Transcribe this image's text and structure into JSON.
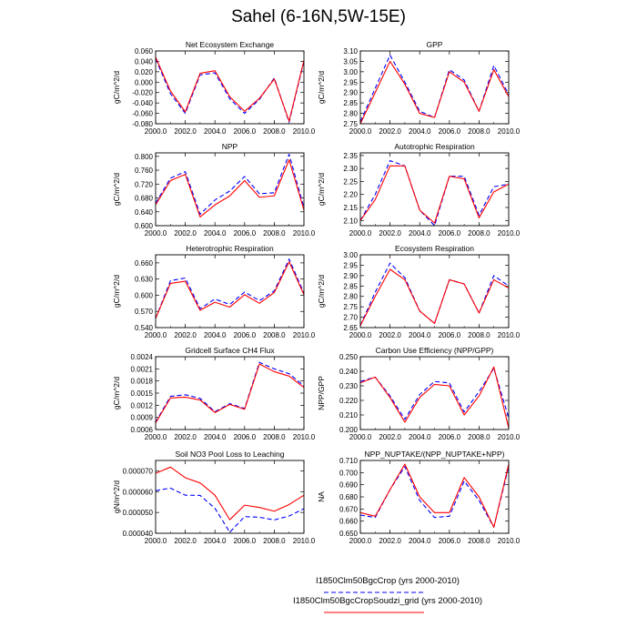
{
  "page": {
    "title": "Sahel (6-16N,5W-15E)"
  },
  "legend": {
    "items": [
      {
        "label": "I1850Clm50BgcCrop (yrs 2000-2010)",
        "color": "#0000ff",
        "dash": true
      },
      {
        "label": "I1850Clm50BgcCropSoudzi_grid (yrs 2000-2010)",
        "color": "#ff0000",
        "dash": false
      }
    ]
  },
  "chart_data": [
    {
      "type": "line",
      "title": "Net Ecosystem Exchange",
      "ylabel": "gC/m^2/d",
      "x": [
        2000,
        2001,
        2002,
        2003,
        2004,
        2005,
        2006,
        2007,
        2008,
        2009,
        2010
      ],
      "xticks": [
        2000,
        2002,
        2004,
        2006,
        2008,
        2010
      ],
      "xtick_labels": [
        "2000.0",
        "2002.0",
        "2004.0",
        "2006.0",
        "2008.0",
        "2010.0"
      ],
      "xlim": [
        2000,
        2010
      ],
      "ylim": [
        -0.08,
        0.06
      ],
      "yticks": [
        -0.08,
        -0.06,
        -0.04,
        -0.02,
        0.0,
        0.02,
        0.04,
        0.06
      ],
      "ytick_labels": [
        "-0.080",
        "-0.060",
        "-0.040",
        "-0.020",
        "0.000",
        "0.020",
        "0.040",
        "0.060"
      ],
      "series": [
        {
          "name": "I1850Clm50BgcCrop (yrs 2000-2010)",
          "color": "#0000ff",
          "dash": true,
          "values": [
            0.045,
            -0.022,
            -0.06,
            0.014,
            0.018,
            -0.032,
            -0.06,
            -0.033,
            0.008,
            -0.077,
            0.04
          ]
        },
        {
          "name": "I1850Clm50BgcCropSoudzi_grid (yrs 2000-2010)",
          "color": "#ff0000",
          "dash": false,
          "values": [
            0.048,
            -0.017,
            -0.057,
            0.017,
            0.022,
            -0.028,
            -0.056,
            -0.031,
            0.006,
            -0.075,
            0.042
          ]
        }
      ]
    },
    {
      "type": "line",
      "title": "GPP",
      "ylabel": "gC/m^2/d",
      "x": [
        2000,
        2001,
        2002,
        2003,
        2004,
        2005,
        2006,
        2007,
        2008,
        2009,
        2010
      ],
      "xticks": [
        2000,
        2002,
        2004,
        2006,
        2008,
        2010
      ],
      "xtick_labels": [
        "2000.0",
        "2002.0",
        "2004.0",
        "2006.0",
        "2008.0",
        "2010.0"
      ],
      "xlim": [
        2000,
        2010
      ],
      "ylim": [
        2.75,
        3.1
      ],
      "yticks": [
        2.75,
        2.8,
        2.85,
        2.9,
        2.95,
        3.0,
        3.05,
        3.1
      ],
      "ytick_labels": [
        "2.75",
        "2.80",
        "2.85",
        "2.90",
        "2.95",
        "3.00",
        "3.05",
        "3.10"
      ],
      "series": [
        {
          "name": "I1850Clm50BgcCrop (yrs 2000-2010)",
          "color": "#0000ff",
          "dash": true,
          "values": [
            2.76,
            2.92,
            3.08,
            2.95,
            2.81,
            2.78,
            3.01,
            2.96,
            2.81,
            3.03,
            2.89
          ]
        },
        {
          "name": "I1850Clm50BgcCropSoudzi_grid (yrs 2000-2010)",
          "color": "#ff0000",
          "dash": false,
          "values": [
            2.75,
            2.9,
            3.05,
            2.94,
            2.8,
            2.78,
            3.0,
            2.95,
            2.81,
            3.01,
            2.88
          ]
        }
      ]
    },
    {
      "type": "line",
      "title": "NPP",
      "ylabel": "gC/m^2/d",
      "x": [
        2000,
        2001,
        2002,
        2003,
        2004,
        2005,
        2006,
        2007,
        2008,
        2009,
        2010
      ],
      "xticks": [
        2000,
        2002,
        2004,
        2006,
        2008,
        2010
      ],
      "xtick_labels": [
        "2000.0",
        "2002.0",
        "2004.0",
        "2006.0",
        "2008.0",
        "2010.0"
      ],
      "xlim": [
        2000,
        2010
      ],
      "ylim": [
        0.6,
        0.81
      ],
      "yticks": [
        0.6,
        0.64,
        0.68,
        0.72,
        0.76,
        0.8
      ],
      "ytick_labels": [
        "0.600",
        "0.640",
        "0.680",
        "0.720",
        "0.760",
        "0.800"
      ],
      "series": [
        {
          "name": "I1850Clm50BgcCrop (yrs 2000-2010)",
          "color": "#0000ff",
          "dash": true,
          "values": [
            0.665,
            0.737,
            0.756,
            0.633,
            0.674,
            0.7,
            0.742,
            0.692,
            0.695,
            0.806,
            0.652
          ]
        },
        {
          "name": "I1850Clm50BgcCropSoudzi_grid (yrs 2000-2010)",
          "color": "#ff0000",
          "dash": false,
          "values": [
            0.66,
            0.73,
            0.748,
            0.625,
            0.66,
            0.686,
            0.73,
            0.682,
            0.686,
            0.79,
            0.645
          ]
        }
      ]
    },
    {
      "type": "line",
      "title": "Autotrophic Respiration",
      "ylabel": "gC/m^2/d",
      "x": [
        2000,
        2001,
        2002,
        2003,
        2004,
        2005,
        2006,
        2007,
        2008,
        2009,
        2010
      ],
      "xticks": [
        2000,
        2002,
        2004,
        2006,
        2008,
        2010
      ],
      "xtick_labels": [
        "2000.0",
        "2002.0",
        "2004.0",
        "2006.0",
        "2008.0",
        "2010.0"
      ],
      "xlim": [
        2000,
        2010
      ],
      "ylim": [
        2.08,
        2.36
      ],
      "yticks": [
        2.1,
        2.15,
        2.2,
        2.25,
        2.3,
        2.35
      ],
      "ytick_labels": [
        "2.10",
        "2.15",
        "2.20",
        "2.25",
        "2.30",
        "2.35"
      ],
      "series": [
        {
          "name": "I1850Clm50BgcCrop (yrs 2000-2010)",
          "color": "#0000ff",
          "dash": true,
          "values": [
            2.1,
            2.2,
            2.33,
            2.31,
            2.14,
            2.08,
            2.27,
            2.27,
            2.12,
            2.23,
            2.24
          ]
        },
        {
          "name": "I1850Clm50BgcCropSoudzi_grid (yrs 2000-2010)",
          "color": "#ff0000",
          "dash": false,
          "values": [
            2.1,
            2.18,
            2.31,
            2.31,
            2.14,
            2.09,
            2.27,
            2.26,
            2.11,
            2.21,
            2.24
          ]
        }
      ]
    },
    {
      "type": "line",
      "title": "Heterotrophic Respiration",
      "ylabel": "gC/m^2/d",
      "x": [
        2000,
        2001,
        2002,
        2003,
        2004,
        2005,
        2006,
        2007,
        2008,
        2009,
        2010
      ],
      "xticks": [
        2000,
        2002,
        2004,
        2006,
        2008,
        2010
      ],
      "xtick_labels": [
        "2000.0",
        "2002.0",
        "2004.0",
        "2006.0",
        "2008.0",
        "2010.0"
      ],
      "xlim": [
        2000,
        2010
      ],
      "ylim": [
        0.54,
        0.675
      ],
      "yticks": [
        0.54,
        0.57,
        0.6,
        0.63,
        0.66
      ],
      "ytick_labels": [
        "0.540",
        "0.570",
        "0.600",
        "0.630",
        "0.660"
      ],
      "series": [
        {
          "name": "I1850Clm50BgcCrop (yrs 2000-2010)",
          "color": "#0000ff",
          "dash": true,
          "values": [
            0.557,
            0.627,
            0.632,
            0.575,
            0.593,
            0.583,
            0.606,
            0.59,
            0.608,
            0.667,
            0.604
          ]
        },
        {
          "name": "I1850Clm50BgcCropSoudzi_grid (yrs 2000-2010)",
          "color": "#ff0000",
          "dash": false,
          "values": [
            0.557,
            0.622,
            0.626,
            0.572,
            0.587,
            0.578,
            0.601,
            0.585,
            0.605,
            0.662,
            0.601
          ]
        }
      ]
    },
    {
      "type": "line",
      "title": "Ecosystem Respiration",
      "ylabel": "gC/m^2/d",
      "x": [
        2000,
        2001,
        2002,
        2003,
        2004,
        2005,
        2006,
        2007,
        2008,
        2009,
        2010
      ],
      "xticks": [
        2000,
        2002,
        2004,
        2006,
        2008,
        2010
      ],
      "xtick_labels": [
        "2000.0",
        "2002.0",
        "2004.0",
        "2006.0",
        "2008.0",
        "2010.0"
      ],
      "xlim": [
        2000,
        2010
      ],
      "ylim": [
        2.65,
        3.0
      ],
      "yticks": [
        2.65,
        2.7,
        2.75,
        2.8,
        2.85,
        2.9,
        2.95,
        3.0
      ],
      "ytick_labels": [
        "2.65",
        "2.70",
        "2.75",
        "2.80",
        "2.85",
        "2.90",
        "2.95",
        "3.00"
      ],
      "series": [
        {
          "name": "I1850Clm50BgcCrop (yrs 2000-2010)",
          "color": "#0000ff",
          "dash": true,
          "values": [
            2.66,
            2.82,
            2.96,
            2.89,
            2.73,
            2.67,
            2.88,
            2.86,
            2.72,
            2.9,
            2.85
          ]
        },
        {
          "name": "I1850Clm50BgcCropSoudzi_grid (yrs 2000-2010)",
          "color": "#ff0000",
          "dash": false,
          "values": [
            2.66,
            2.8,
            2.93,
            2.88,
            2.73,
            2.67,
            2.88,
            2.86,
            2.72,
            2.88,
            2.84
          ]
        }
      ]
    },
    {
      "type": "line",
      "title": "Gridcell Surface CH4 Flux",
      "ylabel": "gC/m^2/d",
      "x": [
        2000,
        2001,
        2002,
        2003,
        2004,
        2005,
        2006,
        2007,
        2008,
        2009,
        2010
      ],
      "xticks": [
        2000,
        2002,
        2004,
        2006,
        2008,
        2010
      ],
      "xtick_labels": [
        "2000.0",
        "2002.0",
        "2004.0",
        "2006.0",
        "2008.0",
        "2010.0"
      ],
      "xlim": [
        2000,
        2010
      ],
      "ylim": [
        0.0006,
        0.0024
      ],
      "yticks": [
        0.0006,
        0.0009,
        0.0012,
        0.0015,
        0.0018,
        0.0021,
        0.0024
      ],
      "ytick_labels": [
        "0.0006",
        "0.0009",
        "0.0012",
        "0.0015",
        "0.0018",
        "0.0021",
        "0.0024"
      ],
      "series": [
        {
          "name": "I1850Clm50BgcCrop (yrs 2000-2010)",
          "color": "#0000ff",
          "dash": true,
          "values": [
            0.00078,
            0.00142,
            0.00146,
            0.00137,
            0.00104,
            0.00124,
            0.00112,
            0.00226,
            0.0021,
            0.00198,
            0.00168
          ]
        },
        {
          "name": "I1850Clm50BgcCropSoudzi_grid (yrs 2000-2010)",
          "color": "#ff0000",
          "dash": false,
          "values": [
            0.00076,
            0.00138,
            0.0014,
            0.00133,
            0.00102,
            0.00122,
            0.0011,
            0.00222,
            0.00203,
            0.00192,
            0.00164
          ]
        }
      ]
    },
    {
      "type": "line",
      "title": "Carbon Use Efficiency (NPP/GPP)",
      "ylabel": "NPP/GPP",
      "x": [
        2000,
        2001,
        2002,
        2003,
        2004,
        2005,
        2006,
        2007,
        2008,
        2009,
        2010
      ],
      "xticks": [
        2000,
        2002,
        2004,
        2006,
        2008,
        2010
      ],
      "xtick_labels": [
        "2000.0",
        "2002.0",
        "2004.0",
        "2006.0",
        "2008.0",
        "2010.0"
      ],
      "xlim": [
        2000,
        2010
      ],
      "ylim": [
        0.2,
        0.25
      ],
      "yticks": [
        0.2,
        0.21,
        0.22,
        0.23,
        0.24,
        0.25
      ],
      "ytick_labels": [
        "0.200",
        "0.210",
        "0.220",
        "0.230",
        "0.240",
        "0.250"
      ],
      "series": [
        {
          "name": "I1850Clm50BgcCrop (yrs 2000-2010)",
          "color": "#0000ff",
          "dash": true,
          "values": [
            0.233,
            0.236,
            0.223,
            0.207,
            0.224,
            0.233,
            0.232,
            0.212,
            0.226,
            0.242,
            0.208
          ]
        },
        {
          "name": "I1850Clm50BgcCropSoudzi_grid (yrs 2000-2010)",
          "color": "#ff0000",
          "dash": false,
          "values": [
            0.232,
            0.236,
            0.222,
            0.205,
            0.222,
            0.231,
            0.23,
            0.21,
            0.223,
            0.243,
            0.201
          ]
        }
      ]
    },
    {
      "type": "line",
      "title": "Soil NO3 Pool Loss to Leaching",
      "ylabel": "gN/m^2/d",
      "x": [
        2000,
        2001,
        2002,
        2003,
        2004,
        2005,
        2006,
        2007,
        2008,
        2009,
        2010
      ],
      "xticks": [
        2000,
        2002,
        2004,
        2006,
        2008,
        2010
      ],
      "xtick_labels": [
        "2000.0",
        "2002.0",
        "2004.0",
        "2006.0",
        "2008.0",
        "2010.0"
      ],
      "xlim": [
        2000,
        2010
      ],
      "ylim": [
        4e-05,
        7.5e-05
      ],
      "yticks": [
        4e-05,
        5e-05,
        6e-05,
        7e-05
      ],
      "ytick_labels": [
        "0.000040",
        "0.000050",
        "0.000060",
        "0.000070"
      ],
      "series": [
        {
          "name": "I1850Clm50BgcCrop (yrs 2000-2010)",
          "color": "#0000ff",
          "dash": true,
          "values": [
            6.05e-05,
            6.17e-05,
            5.83e-05,
            5.82e-05,
            5.2e-05,
            4.05e-05,
            4.8e-05,
            4.77e-05,
            4.64e-05,
            4.83e-05,
            5.18e-05
          ]
        },
        {
          "name": "I1850Clm50BgcCropSoudzi_grid (yrs 2000-2010)",
          "color": "#ff0000",
          "dash": false,
          "values": [
            6.88e-05,
            7.18e-05,
            6.67e-05,
            6.42e-05,
            5.83e-05,
            4.65e-05,
            5.35e-05,
            5.24e-05,
            5.06e-05,
            5.38e-05,
            5.83e-05
          ]
        }
      ]
    },
    {
      "type": "line",
      "title": "NPP_NUPTAKE/(NPP_NUPTAKE+NPP)",
      "ylabel": "NA",
      "x": [
        2000,
        2001,
        2002,
        2003,
        2004,
        2005,
        2006,
        2007,
        2008,
        2009,
        2010
      ],
      "xticks": [
        2000,
        2002,
        2004,
        2006,
        2008,
        2010
      ],
      "xtick_labels": [
        "2000.0",
        "2002.0",
        "2004.0",
        "2006.0",
        "2008.0",
        "2010.0"
      ],
      "xlim": [
        2000,
        2010
      ],
      "ylim": [
        0.65,
        0.71
      ],
      "yticks": [
        0.65,
        0.66,
        0.67,
        0.68,
        0.69,
        0.7,
        0.71
      ],
      "ytick_labels": [
        "0.650",
        "0.660",
        "0.670",
        "0.680",
        "0.690",
        "0.700",
        "0.710"
      ],
      "series": [
        {
          "name": "I1850Clm50BgcCrop (yrs 2000-2010)",
          "color": "#0000ff",
          "dash": true,
          "values": [
            0.665,
            0.663,
            0.686,
            0.705,
            0.677,
            0.663,
            0.664,
            0.693,
            0.677,
            0.655,
            0.705
          ]
        },
        {
          "name": "I1850Clm50BgcCropSoudzi_grid (yrs 2000-2010)",
          "color": "#ff0000",
          "dash": false,
          "values": [
            0.667,
            0.664,
            0.686,
            0.707,
            0.68,
            0.667,
            0.667,
            0.696,
            0.68,
            0.655,
            0.707
          ]
        }
      ]
    }
  ]
}
